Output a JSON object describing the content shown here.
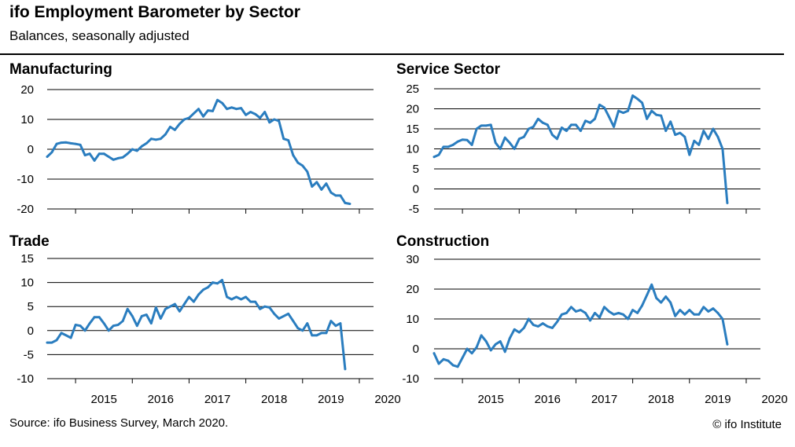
{
  "header": {
    "title": "ifo Employment Barometer by Sector",
    "subtitle": "Balances, seasonally adjusted"
  },
  "footer": {
    "source": "Source: ifo Business Survey, March 2020.",
    "copyright": "© ifo Institute"
  },
  "colors": {
    "line": "#2a7dbf",
    "grid": "#000000",
    "text": "#000000"
  },
  "chart_data": [
    {
      "type": "line",
      "title": "Manufacturing",
      "ylim": [
        -20,
        20
      ],
      "yticks": [
        20,
        10,
        0,
        -10,
        -20
      ],
      "xticks": [
        "2015",
        "2016",
        "2017",
        "2018",
        "2019",
        "2020"
      ],
      "start": "2014-07",
      "grid": true,
      "series": [
        {
          "values": [
            -2.5,
            -1,
            1.8,
            2.2,
            2.3,
            2,
            1.8,
            1.5,
            -2,
            -1.5,
            -3.8,
            -1.5,
            -1.5,
            -2.5,
            -3.5,
            -3,
            -2.7,
            -1.5,
            0,
            -0.5,
            1,
            2,
            3.5,
            3.2,
            3.5,
            5,
            7.5,
            6.5,
            8.5,
            10,
            10.5,
            12,
            13.5,
            11,
            13,
            12.8,
            16.5,
            15.5,
            13.5,
            14,
            13.5,
            13.8,
            11.5,
            12.5,
            11.8,
            10.5,
            12.5,
            9,
            10,
            9.5,
            3.5,
            3,
            -2,
            -4.5,
            -5.5,
            -7.5,
            -12.5,
            -11,
            -13.5,
            -11.5,
            -14.5,
            -15.5,
            -15.5,
            -18,
            -18.3
          ]
        }
      ]
    },
    {
      "type": "line",
      "title": "Service Sector",
      "ylim": [
        -5,
        25
      ],
      "yticks": [
        25,
        20,
        15,
        10,
        5,
        0,
        -5
      ],
      "xticks": [
        "2015",
        "2016",
        "2017",
        "2018",
        "2019",
        "2020"
      ],
      "start": "2014-07",
      "grid": true,
      "series": [
        {
          "values": [
            8,
            8.5,
            10.5,
            10.5,
            11,
            11.8,
            12.3,
            12.2,
            11,
            15,
            15.8,
            15.8,
            16,
            11.5,
            10,
            12.8,
            11.5,
            10,
            12.5,
            13,
            15,
            15.5,
            17.5,
            16.5,
            16,
            13.5,
            12.5,
            15.3,
            14.5,
            16,
            16,
            14.5,
            17,
            16.5,
            17.5,
            21,
            20.3,
            18,
            15.5,
            19.5,
            19,
            19.5,
            23.3,
            22.5,
            21.5,
            17.5,
            19.5,
            18.5,
            18.3,
            14.5,
            16.8,
            13.5,
            14,
            13,
            8.5,
            12,
            11,
            14.5,
            12.5,
            15,
            13,
            10,
            -3.5
          ]
        }
      ]
    },
    {
      "type": "line",
      "title": "Trade",
      "ylim": [
        -10,
        15
      ],
      "yticks": [
        15,
        10,
        5,
        0,
        -5,
        -10
      ],
      "xticks": [
        "2015",
        "2016",
        "2017",
        "2018",
        "2019",
        "2020"
      ],
      "start": "2014-07",
      "grid": true,
      "series": [
        {
          "values": [
            -2.5,
            -2.5,
            -2,
            -0.5,
            -1,
            -1.5,
            1.2,
            1,
            0,
            1.5,
            2.8,
            2.8,
            1.5,
            0,
            1,
            1.2,
            2,
            4.5,
            3,
            1,
            3,
            3.3,
            1.5,
            4.8,
            2.5,
            4.5,
            5,
            5.5,
            4,
            5.5,
            7,
            6,
            7.5,
            8.5,
            9,
            10,
            9.8,
            10.5,
            7,
            6.5,
            7,
            6.5,
            7,
            6,
            6,
            4.5,
            5,
            4.8,
            3.5,
            2.5,
            3,
            3.5,
            2,
            0.5,
            0,
            1.5,
            -1,
            -1,
            -0.5,
            -0.5,
            2,
            1,
            1.5,
            -8
          ]
        }
      ]
    },
    {
      "type": "line",
      "title": "Construction",
      "ylim": [
        -10,
        30
      ],
      "yticks": [
        30,
        20,
        10,
        0,
        -10
      ],
      "xticks": [
        "2015",
        "2016",
        "2017",
        "2018",
        "2019",
        "2020"
      ],
      "start": "2014-07",
      "grid": true,
      "series": [
        {
          "values": [
            -1.5,
            -5,
            -3.5,
            -4,
            -5.5,
            -6,
            -3,
            0,
            -1.5,
            0.5,
            4.5,
            2.5,
            -0.5,
            1.5,
            2.5,
            -1,
            3.5,
            6.5,
            5.5,
            7,
            10,
            8,
            7.5,
            8.5,
            7.5,
            7,
            9,
            11.5,
            12,
            14,
            12.5,
            13,
            12,
            9.5,
            12,
            10.5,
            14,
            12.5,
            11.5,
            12,
            11.5,
            10,
            13,
            12,
            14.5,
            18,
            21.5,
            17,
            15.5,
            17.5,
            15.5,
            11,
            13,
            11.5,
            13,
            11.5,
            11.5,
            14,
            12.5,
            13.5,
            12,
            10,
            1.5
          ]
        }
      ]
    }
  ]
}
